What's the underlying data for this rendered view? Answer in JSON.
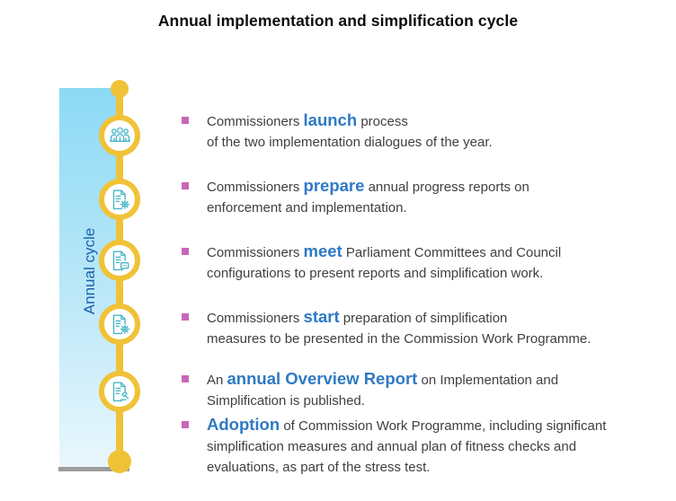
{
  "title": "Annual implementation and simplification cycle",
  "timeline": {
    "label": "Annual cycle",
    "nodes": [
      {
        "icon": "group-icon"
      },
      {
        "icon": "document-gear-icon"
      },
      {
        "icon": "document-chat-icon"
      },
      {
        "icon": "document-gear-icon"
      },
      {
        "icon": "document-gavel-icon"
      }
    ]
  },
  "bullets": [
    {
      "segments": [
        {
          "t": "Commissioners "
        },
        {
          "t": "launch",
          "b": true
        },
        {
          "t": " process\nof the two implementation dialogues of the year."
        }
      ]
    },
    {
      "segments": [
        {
          "t": "Commissioners "
        },
        {
          "t": "prepare",
          "b": true
        },
        {
          "t": " annual progress reports on\nenforcement and implementation."
        }
      ]
    },
    {
      "segments": [
        {
          "t": "Commissioners "
        },
        {
          "t": "meet",
          "b": true
        },
        {
          "t": " Parliament Committees and Council\nconfigurations to present reports and simplification work."
        }
      ]
    },
    {
      "segments": [
        {
          "t": "Commissioners "
        },
        {
          "t": "start",
          "b": true
        },
        {
          "t": " preparation of simplification\nmeasures to be presented in the Commission Work Programme."
        }
      ]
    },
    {
      "segments": [
        {
          "t": "An "
        },
        {
          "t": "annual Overview Report",
          "b": true
        },
        {
          "t": " on Implementation and\nSimplification is published."
        }
      ]
    },
    {
      "segments": [
        {
          "t": "Adoption",
          "b": true
        },
        {
          "t": " of Commission Work Programme, including significant\nsimplification measures and annual plan of fitness checks and\nevaluations, as part of the stress test."
        }
      ]
    }
  ],
  "colors": {
    "accent_yellow": "#F0C237",
    "icon_teal": "#47B6C7",
    "bullet_pink": "#C767B6",
    "keyword_blue": "#2E7AC4",
    "timeline_label_blue": "#1A5FA9",
    "panel_gradient_top": "#8CDAF5",
    "panel_gradient_bottom": "#EAF7FD",
    "body_text": "#3F3F3F",
    "base_bar_gray": "#9C9C9C"
  }
}
